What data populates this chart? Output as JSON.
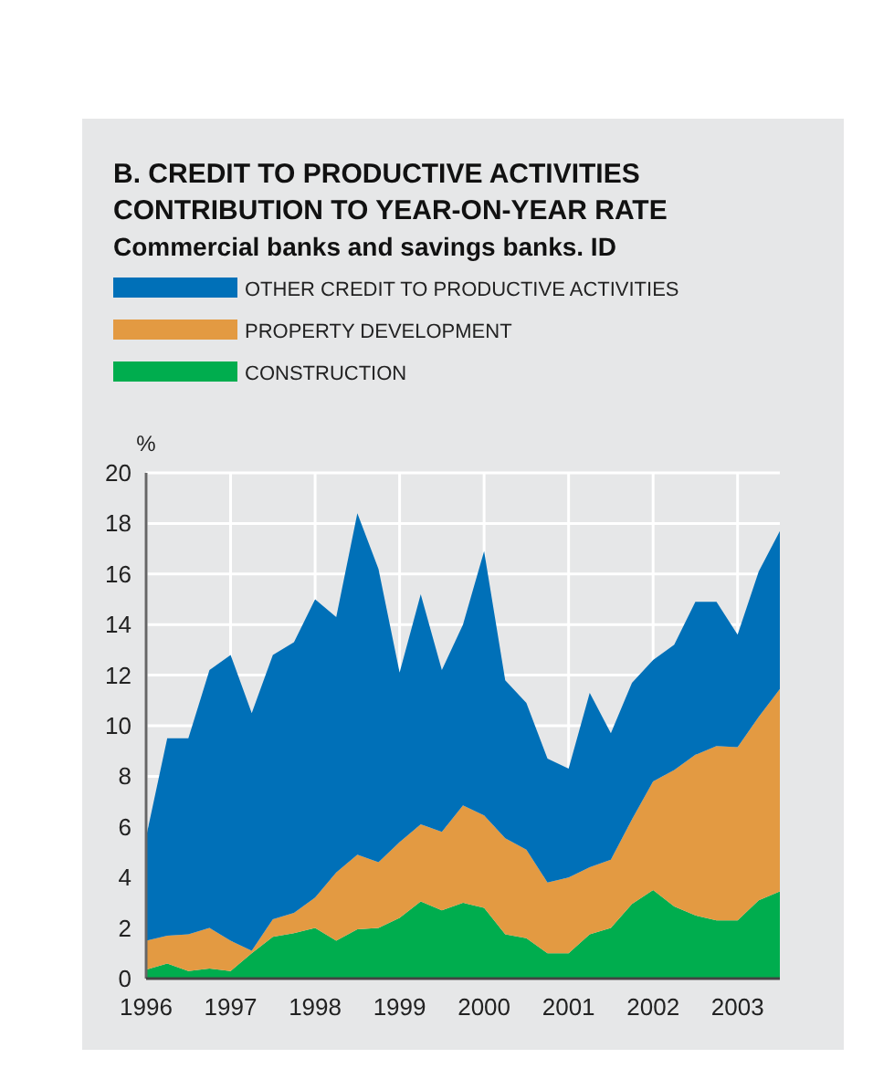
{
  "chart_data": {
    "type": "area",
    "stacked": true,
    "title": "B. CREDIT TO PRODUCTIVE ACTIVITIES\nCONTRIBUTION TO YEAR-ON-YEAR RATE",
    "subtitle": "Commercial banks and savings banks. ID",
    "ylabel": "%",
    "x": [
      1996,
      1996.25,
      1996.5,
      1996.75,
      1997,
      1997.25,
      1997.5,
      1997.75,
      1998,
      1998.25,
      1998.5,
      1998.75,
      1999,
      1999.25,
      1999.5,
      1999.75,
      2000,
      2000.25,
      2000.5,
      2000.75,
      2001,
      2001.25,
      2001.5,
      2001.75,
      2002,
      2002.25,
      2002.5,
      2002.75,
      2003,
      2003.25,
      2003.5
    ],
    "series": [
      {
        "name": "CONSTRUCTION",
        "color": "#00ad4e",
        "values": [
          0.35,
          0.6,
          0.3,
          0.4,
          0.3,
          1.0,
          1.65,
          1.8,
          2.0,
          1.5,
          1.95,
          2.0,
          2.4,
          3.05,
          2.7,
          3.0,
          2.8,
          1.75,
          1.6,
          1.0,
          1.0,
          1.75,
          2.0,
          2.95,
          3.5,
          2.85,
          2.5,
          2.3,
          2.3,
          3.1,
          3.45
        ]
      },
      {
        "name": "PROPERTY DEVELOPMENT",
        "color": "#e39a42",
        "values": [
          1.15,
          1.1,
          1.45,
          1.6,
          1.2,
          0.1,
          0.7,
          0.8,
          1.2,
          2.7,
          2.95,
          2.6,
          3.0,
          3.05,
          3.1,
          3.85,
          3.65,
          3.8,
          3.5,
          2.8,
          3.0,
          2.65,
          2.7,
          3.35,
          4.3,
          5.4,
          6.35,
          6.9,
          6.85,
          7.25,
          8.0
        ]
      },
      {
        "name": "OTHER CREDIT TO PRODUCTIVE ACTIVITIES",
        "color": "#0070b8",
        "values": [
          4.1,
          7.8,
          7.75,
          10.2,
          11.3,
          9.4,
          10.45,
          10.7,
          11.8,
          10.1,
          13.5,
          11.6,
          6.7,
          9.1,
          6.4,
          7.15,
          10.45,
          6.25,
          5.8,
          4.9,
          4.3,
          6.9,
          5.0,
          5.4,
          4.8,
          4.95,
          6.05,
          5.7,
          4.45,
          5.75,
          6.25
        ]
      }
    ],
    "xlim": [
      1996,
      2003.5
    ],
    "xticks": [
      1996,
      1997,
      1998,
      1999,
      2000,
      2001,
      2002,
      2003
    ],
    "ylim": [
      0,
      20
    ],
    "yticks": [
      0,
      2,
      4,
      6,
      8,
      10,
      12,
      14,
      16,
      18,
      20
    ],
    "grid": true,
    "legend": "top"
  }
}
